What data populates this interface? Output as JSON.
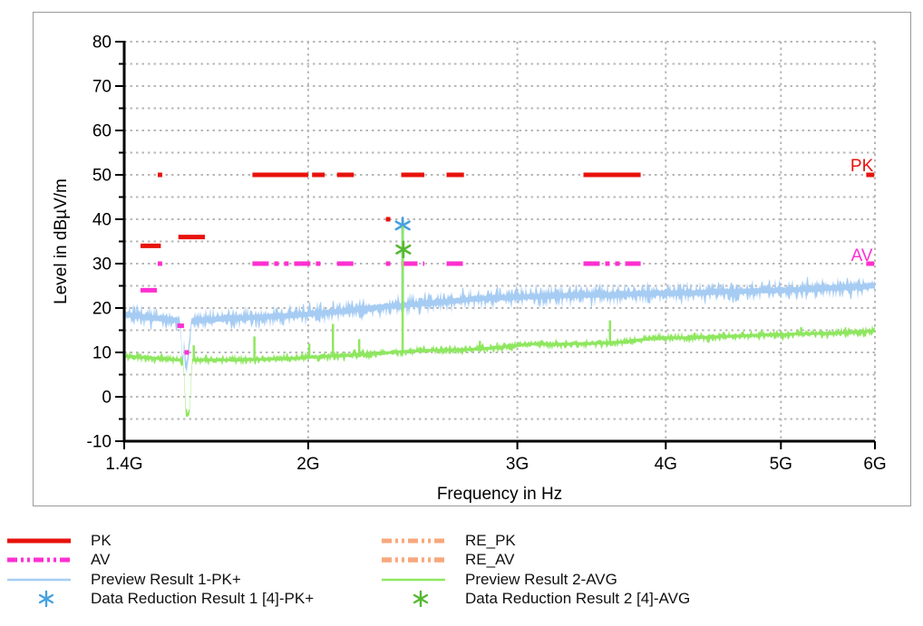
{
  "chart_data": {
    "type": "line",
    "title": "",
    "xlabel": "Frequency in Hz",
    "ylabel": "Level in dBµV/m",
    "x_scale": "log",
    "xlim_ghz": [
      1.4,
      6.0
    ],
    "x_ticks": [
      {
        "ghz": 1.4,
        "label": "1.4G"
      },
      {
        "ghz": 2.0,
        "label": "2G"
      },
      {
        "ghz": 3.0,
        "label": "3G"
      },
      {
        "ghz": 4.0,
        "label": "4G"
      },
      {
        "ghz": 5.0,
        "label": "5G"
      },
      {
        "ghz": 6.0,
        "label": "6G"
      }
    ],
    "ylim": [
      -10,
      80
    ],
    "y_tick_step": 10,
    "y_minor_step": 5,
    "grid": true,
    "grid_color": "#b7b7b7",
    "annotations": [
      {
        "text": "PK",
        "ghz": 5.85,
        "level": 50.8,
        "color": "#e8120c"
      },
      {
        "text": "AV",
        "ghz": 5.85,
        "level": 30.6,
        "color": "#ff2fd0"
      }
    ],
    "limit_lines": [
      {
        "name": "PK",
        "color": "#e8120c",
        "style": "solid",
        "width": 5,
        "segments_ghz_level": [
          [
            1.445,
            1.503,
            34
          ],
          [
            1.555,
            1.637,
            36
          ],
          [
            1.494,
            1.507,
            50
          ],
          [
            1.795,
            2.0,
            50
          ],
          [
            2.015,
            2.065,
            50
          ],
          [
            2.115,
            2.185,
            50
          ],
          [
            2.325,
            2.345,
            40
          ],
          [
            2.395,
            2.505,
            50
          ],
          [
            2.615,
            2.705,
            50
          ],
          [
            3.41,
            3.81,
            50
          ],
          [
            5.9,
            5.99,
            50
          ]
        ]
      },
      {
        "name": "AV",
        "color": "#ff2fd0",
        "style": "dashdotdot",
        "width": 5,
        "segments_ghz_level": [
          [
            1.445,
            1.503,
            24
          ],
          [
            1.494,
            1.507,
            30
          ],
          [
            1.552,
            1.572,
            16
          ],
          [
            1.575,
            1.586,
            10
          ],
          [
            1.795,
            2.065,
            30
          ],
          [
            2.115,
            2.185,
            30
          ],
          [
            2.325,
            2.345,
            30
          ],
          [
            2.395,
            2.505,
            30
          ],
          [
            2.615,
            2.705,
            30
          ],
          [
            3.41,
            3.81,
            30
          ],
          [
            5.9,
            5.99,
            30
          ]
        ]
      }
    ],
    "series": [
      {
        "name": "Preview Result 1-PK+",
        "color": "#a6ccf3",
        "kind": "noisy-band",
        "noise_db": 2.3,
        "core_db": 0.55,
        "points_ghz_db": [
          [
            1.4,
            18.6
          ],
          [
            1.43,
            18.3
          ],
          [
            1.46,
            18.0
          ],
          [
            1.49,
            17.7
          ],
          [
            1.52,
            17.5
          ],
          [
            1.545,
            17.3
          ],
          [
            1.558,
            17.0
          ],
          [
            1.563,
            14.0
          ],
          [
            1.566,
            9.5
          ],
          [
            1.569,
            7.8
          ],
          [
            1.572,
            11.5
          ],
          [
            1.576,
            8.3
          ],
          [
            1.581,
            7.0
          ],
          [
            1.586,
            9.0
          ],
          [
            1.59,
            14.0
          ],
          [
            1.595,
            17.0
          ],
          [
            1.62,
            17.2
          ],
          [
            1.66,
            17.4
          ],
          [
            1.7,
            17.6
          ],
          [
            1.75,
            17.7
          ],
          [
            1.8,
            17.9
          ],
          [
            1.85,
            18.0
          ],
          [
            1.9,
            18.2
          ],
          [
            1.95,
            18.4
          ],
          [
            2.0,
            18.6
          ],
          [
            2.05,
            18.9
          ],
          [
            2.1,
            19.1
          ],
          [
            2.15,
            19.4
          ],
          [
            2.2,
            19.7
          ],
          [
            2.25,
            19.9
          ],
          [
            2.3,
            20.2
          ],
          [
            2.35,
            20.4
          ],
          [
            2.4,
            20.6
          ],
          [
            2.45,
            20.8
          ],
          [
            2.5,
            21.0
          ],
          [
            2.55,
            21.2
          ],
          [
            2.6,
            21.4
          ],
          [
            2.65,
            21.6
          ],
          [
            2.7,
            21.8
          ],
          [
            2.75,
            22.0
          ],
          [
            2.8,
            22.1
          ],
          [
            2.9,
            22.3
          ],
          [
            3.0,
            22.5
          ],
          [
            3.1,
            22.6
          ],
          [
            3.2,
            22.7
          ],
          [
            3.3,
            22.8
          ],
          [
            3.4,
            22.9
          ],
          [
            3.5,
            22.9
          ],
          [
            3.6,
            23.0
          ],
          [
            3.7,
            23.1
          ],
          [
            3.8,
            23.2
          ],
          [
            3.9,
            23.3
          ],
          [
            4.0,
            23.3
          ],
          [
            4.1,
            23.3
          ],
          [
            4.2,
            23.4
          ],
          [
            4.3,
            23.5
          ],
          [
            4.4,
            23.6
          ],
          [
            4.5,
            23.7
          ],
          [
            4.6,
            23.7
          ],
          [
            4.7,
            23.8
          ],
          [
            4.8,
            23.9
          ],
          [
            4.9,
            23.9
          ],
          [
            5.0,
            24.0
          ],
          [
            5.1,
            24.1
          ],
          [
            5.2,
            24.2
          ],
          [
            5.3,
            24.3
          ],
          [
            5.4,
            24.4
          ],
          [
            5.5,
            24.5
          ],
          [
            5.6,
            24.6
          ],
          [
            5.7,
            24.7
          ],
          [
            5.8,
            24.8
          ],
          [
            5.9,
            24.9
          ],
          [
            6.0,
            25.1
          ]
        ],
        "spikes_ghz_top": [
          [
            2.402,
            39.8
          ]
        ]
      },
      {
        "name": "Preview Result 2-AVG",
        "color": "#8ee75f",
        "kind": "noisy-line",
        "noise_db": 1.1,
        "core_db": 0.3,
        "points_ghz_db": [
          [
            1.4,
            9.2
          ],
          [
            1.44,
            9.0
          ],
          [
            1.48,
            8.7
          ],
          [
            1.52,
            8.5
          ],
          [
            1.56,
            8.3
          ],
          [
            1.569,
            8.2
          ],
          [
            1.573,
            4.0
          ],
          [
            1.577,
            -3.8
          ],
          [
            1.583,
            -4.0
          ],
          [
            1.588,
            -4.2
          ],
          [
            1.592,
            0.5
          ],
          [
            1.596,
            7.5
          ],
          [
            1.6,
            8.3
          ],
          [
            1.65,
            8.3
          ],
          [
            1.7,
            8.3
          ],
          [
            1.75,
            8.3
          ],
          [
            1.8,
            8.4
          ],
          [
            1.85,
            8.5
          ],
          [
            1.9,
            8.6
          ],
          [
            1.95,
            8.7
          ],
          [
            2.0,
            8.9
          ],
          [
            2.05,
            9.0
          ],
          [
            2.1,
            9.2
          ],
          [
            2.15,
            9.3
          ],
          [
            2.2,
            9.5
          ],
          [
            2.25,
            9.6
          ],
          [
            2.3,
            9.8
          ],
          [
            2.35,
            10.0
          ],
          [
            2.4,
            10.2
          ],
          [
            2.45,
            10.3
          ],
          [
            2.5,
            10.4
          ],
          [
            2.55,
            10.5
          ],
          [
            2.6,
            10.5
          ],
          [
            2.65,
            10.6
          ],
          [
            2.7,
            10.6
          ],
          [
            2.75,
            10.7
          ],
          [
            2.8,
            10.8
          ],
          [
            2.85,
            11.0
          ],
          [
            2.9,
            11.1
          ],
          [
            2.95,
            11.4
          ],
          [
            3.0,
            11.6
          ],
          [
            3.05,
            11.8
          ],
          [
            3.1,
            11.9
          ],
          [
            3.15,
            11.9
          ],
          [
            3.2,
            11.8
          ],
          [
            3.25,
            11.8
          ],
          [
            3.3,
            11.9
          ],
          [
            3.35,
            12.0
          ],
          [
            3.4,
            12.0
          ],
          [
            3.45,
            12.0
          ],
          [
            3.5,
            12.1
          ],
          [
            3.55,
            12.1
          ],
          [
            3.6,
            12.2
          ],
          [
            3.65,
            12.3
          ],
          [
            3.7,
            12.4
          ],
          [
            3.75,
            12.6
          ],
          [
            3.8,
            12.8
          ],
          [
            3.85,
            13.0
          ],
          [
            3.9,
            13.2
          ],
          [
            3.95,
            13.2
          ],
          [
            4.0,
            13.2
          ],
          [
            4.1,
            13.3
          ],
          [
            4.2,
            13.3
          ],
          [
            4.3,
            13.4
          ],
          [
            4.4,
            13.5
          ],
          [
            4.5,
            13.6
          ],
          [
            4.6,
            13.7
          ],
          [
            4.7,
            13.8
          ],
          [
            4.8,
            13.9
          ],
          [
            4.9,
            14.0
          ],
          [
            5.0,
            14.0
          ],
          [
            5.1,
            14.1
          ],
          [
            5.2,
            14.2
          ],
          [
            5.3,
            14.2
          ],
          [
            5.4,
            14.3
          ],
          [
            5.5,
            14.3
          ],
          [
            5.6,
            14.4
          ],
          [
            5.7,
            14.5
          ],
          [
            5.8,
            14.6
          ],
          [
            5.9,
            14.7
          ],
          [
            6.0,
            14.8
          ]
        ],
        "spikes_ghz_top": [
          [
            1.602,
            11.6
          ],
          [
            1.802,
            13.6
          ],
          [
            2.004,
            12.0
          ],
          [
            2.098,
            16.4
          ],
          [
            2.208,
            13.0
          ],
          [
            2.402,
            38.4
          ],
          [
            2.79,
            12.6
          ],
          [
            3.59,
            17.2
          ],
          [
            5.2,
            15.7
          ]
        ]
      }
    ],
    "markers": [
      {
        "name": "Data Reduction Result 1 [4]-PK+",
        "series": 0,
        "color": "#46a0e0",
        "ghz": 2.402,
        "level": 38.6,
        "shape": "asterisk"
      },
      {
        "name": "Data Reduction Result 2 [4]-AVG",
        "series": 1,
        "color": "#55b832",
        "ghz": 2.405,
        "level": 33.2,
        "shape": "asterisk"
      }
    ]
  },
  "legend": {
    "styles": {
      "pk": {
        "kind": "line",
        "color": "#e8120c",
        "width": 5,
        "dash": "solid"
      },
      "av": {
        "kind": "line",
        "color": "#ff2fd0",
        "width": 5,
        "dash": "dashdotdot"
      },
      "prev1": {
        "kind": "line",
        "color": "#a6ccf3",
        "width": 2.5,
        "dash": "solid"
      },
      "dr1": {
        "kind": "asterisk",
        "color": "#46a0e0"
      },
      "re_pk": {
        "kind": "line",
        "color": "#f9a87e",
        "width": 5,
        "dash": "dashdotdot"
      },
      "re_av": {
        "kind": "line",
        "color": "#f9a87e",
        "width": 5.5,
        "dash": "dashdotdot"
      },
      "prev2": {
        "kind": "line",
        "color": "#8ee75f",
        "width": 2.5,
        "dash": "solid"
      },
      "dr2": {
        "kind": "asterisk",
        "color": "#55b832"
      }
    },
    "col1": [
      {
        "label": "PK",
        "style": "pk"
      },
      {
        "label": "AV",
        "style": "av"
      },
      {
        "label": "Preview Result 1-PK+",
        "style": "prev1"
      },
      {
        "label": "Data Reduction Result 1 [4]-PK+",
        "style": "dr1"
      }
    ],
    "col2": [
      {
        "label": "RE_PK",
        "style": "re_pk"
      },
      {
        "label": "RE_AV",
        "style": "re_av"
      },
      {
        "label": "Preview Result 2-AVG",
        "style": "prev2"
      },
      {
        "label": "Data Reduction Result 2 [4]-AVG",
        "style": "dr2"
      }
    ]
  }
}
